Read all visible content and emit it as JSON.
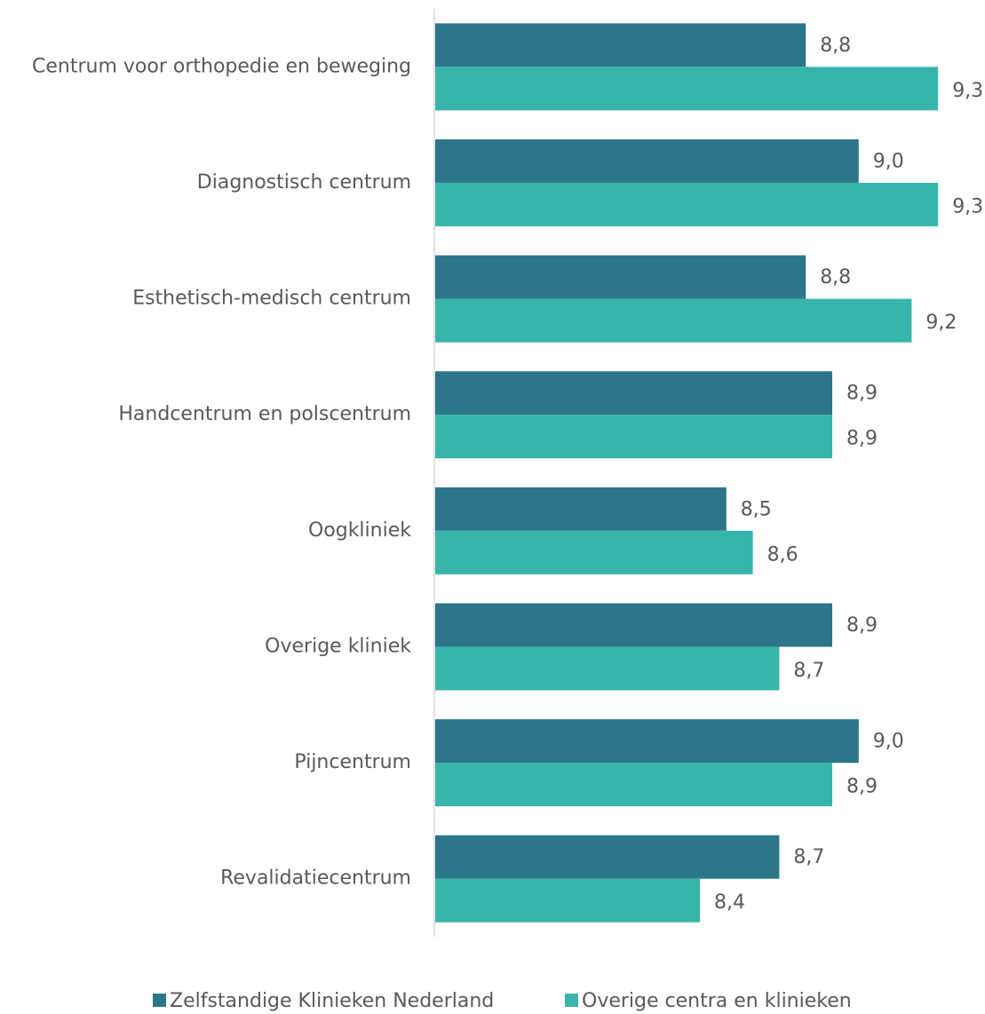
{
  "chart_data": {
    "type": "bar",
    "orientation": "horizontal",
    "categories": [
      "Centrum voor orthopedie en beweging",
      "Diagnostisch centrum",
      "Esthetisch-medisch centrum",
      "Handcentrum en polscentrum",
      "Oogkliniek",
      "Overige kliniek",
      "Pijncentrum",
      "Revalidatiecentrum"
    ],
    "series": [
      {
        "name": "Zelfstandige Klinieken Nederland",
        "color": "#2b7689",
        "values": [
          8.8,
          9.0,
          8.8,
          8.9,
          8.5,
          8.9,
          9.0,
          8.7
        ],
        "value_labels": [
          "8,8",
          "9,0",
          "8,8",
          "8,9",
          "8,5",
          "8,9",
          "9,0",
          "8,7"
        ]
      },
      {
        "name": "Overige centra en klinieken",
        "color": "#38b5aa",
        "values": [
          9.3,
          9.3,
          9.2,
          8.9,
          8.6,
          8.7,
          8.9,
          8.4
        ],
        "value_labels": [
          "9,3",
          "9,3",
          "9,2",
          "8,9",
          "8,6",
          "8,7",
          "8,9",
          "8,4"
        ]
      }
    ],
    "xlim": [
      7.4,
      9.4
    ],
    "legend": "bottom"
  }
}
